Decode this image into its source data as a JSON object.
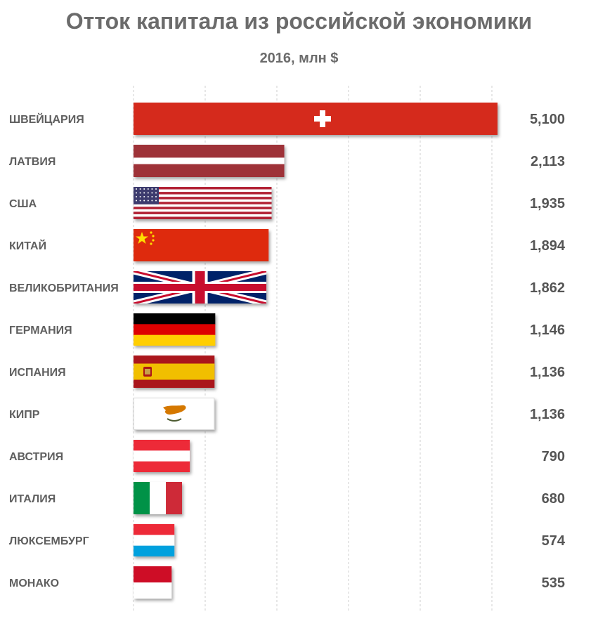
{
  "chart_data": {
    "type": "bar",
    "orientation": "horizontal",
    "title": "Отток капитала из российской экономики",
    "subtitle": "2016, млн $",
    "categories": [
      "ШВЕЙЦАРИЯ",
      "ЛАТВИЯ",
      "США",
      "КИТАЙ",
      "ВЕЛИКОБРИТАНИЯ",
      "ГЕРМАНИЯ",
      "ИСПАНИЯ",
      "КИПР",
      "АВСТРИЯ",
      "ИТАЛИЯ",
      "ЛЮКСЕМБУРГ",
      "МОНАКО"
    ],
    "values": [
      5100,
      2113,
      1935,
      1894,
      1862,
      1146,
      1136,
      1136,
      790,
      680,
      574,
      535
    ],
    "value_labels": [
      "5,100",
      "2,113",
      "1,935",
      "1,894",
      "1,862",
      "1,146",
      "1,136",
      "1,136",
      "790",
      "680",
      "574",
      "535"
    ],
    "bar_fills": [
      "flag-switzerland",
      "flag-latvia",
      "flag-usa",
      "flag-china",
      "flag-uk",
      "flag-germany",
      "flag-spain",
      "flag-cyprus",
      "flag-austria",
      "flag-italy",
      "flag-luxembourg",
      "flag-monaco"
    ],
    "xlim": [
      0,
      5100
    ],
    "grid": "vertical dashed",
    "legend": "none"
  }
}
